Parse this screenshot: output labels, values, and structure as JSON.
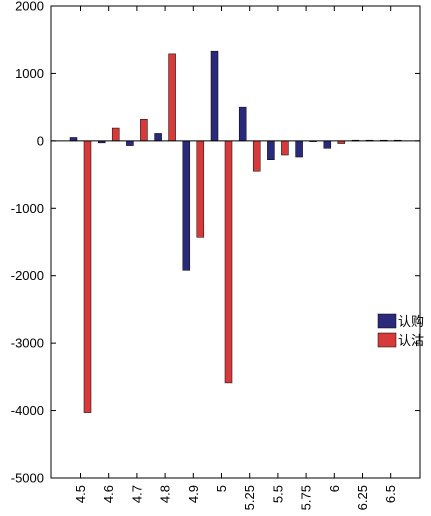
{
  "chart_data": {
    "type": "bar",
    "title": "",
    "xlabel": "",
    "ylabel": "",
    "categories": [
      "4.5",
      "4.6",
      "4.7",
      "4.8",
      "4.9",
      "5",
      "5.25",
      "5.5",
      "5.75",
      "6",
      "6.25",
      "6.5"
    ],
    "series": [
      {
        "name": "认购",
        "color": "#2b2a7a",
        "values": [
          50,
          -30,
          -70,
          110,
          -1920,
          1330,
          500,
          -280,
          -240,
          -110,
          10,
          10
        ]
      },
      {
        "name": "认沽",
        "color": "#d63a3a",
        "values": [
          -4030,
          190,
          320,
          1290,
          -1430,
          -3590,
          -450,
          -210,
          0,
          -40,
          10,
          10
        ]
      }
    ],
    "ylim": [
      -5000,
      2000
    ],
    "yticks": [
      2000,
      1000,
      0,
      -1000,
      -2000,
      -3000,
      -4000,
      -5000
    ],
    "grid": false,
    "legend_position": "right-middle"
  }
}
